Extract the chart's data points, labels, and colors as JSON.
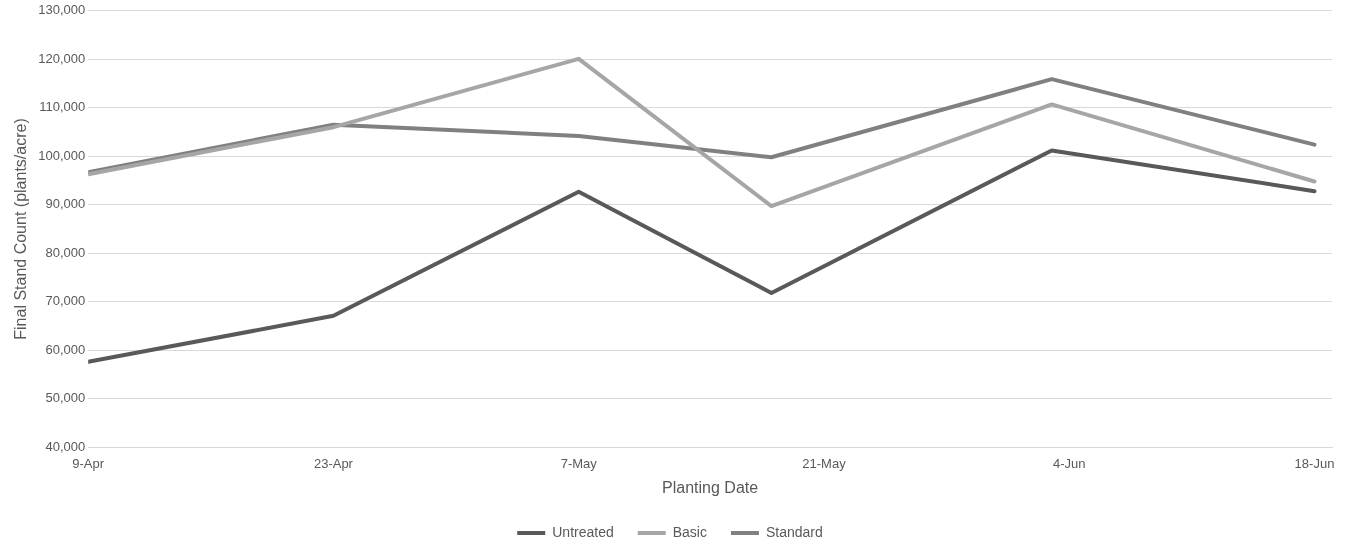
{
  "chart_data": {
    "type": "line",
    "xlabel": "Planting Date",
    "ylabel": "Final Stand Count (plants/acre)",
    "x": [
      "--04-09",
      "--04-23",
      "--05-07",
      "--05-18",
      "--06-03",
      "--06-18"
    ],
    "series": [
      {
        "name": "Untreated",
        "color": "#595959",
        "values": [
          57600,
          67100,
          92700,
          71800,
          101200,
          92800
        ]
      },
      {
        "name": "Basic",
        "color": "#a6a6a6",
        "values": [
          96300,
          106000,
          120100,
          89700,
          110700,
          94800
        ]
      },
      {
        "name": "Standard",
        "color": "#808080",
        "values": [
          96700,
          106500,
          104200,
          99800,
          115900,
          102400
        ]
      }
    ],
    "xlim": [
      "--04-09",
      "--06-19"
    ],
    "xticks": [
      {
        "value": "--04-09",
        "label": "9-Apr"
      },
      {
        "value": "--04-23",
        "label": "23-Apr"
      },
      {
        "value": "--05-07",
        "label": "7-May"
      },
      {
        "value": "--05-21",
        "label": "21-May"
      },
      {
        "value": "--06-04",
        "label": "4-Jun"
      },
      {
        "value": "--06-18",
        "label": "18-Jun"
      }
    ],
    "ylim": [
      40000,
      130000
    ],
    "yticks": [
      {
        "value": 40000,
        "label": "40,000"
      },
      {
        "value": 50000,
        "label": "50,000"
      },
      {
        "value": 60000,
        "label": "60,000"
      },
      {
        "value": 70000,
        "label": "70,000"
      },
      {
        "value": 80000,
        "label": "80,000"
      },
      {
        "value": 90000,
        "label": "90,000"
      },
      {
        "value": 100000,
        "label": "100,000"
      },
      {
        "value": 110000,
        "label": "110,000"
      },
      {
        "value": 120000,
        "label": "120,000"
      },
      {
        "value": 130000,
        "label": "130,000"
      }
    ],
    "grid": "y",
    "legend": "bottom",
    "marker": "none",
    "line_style": "solid"
  }
}
